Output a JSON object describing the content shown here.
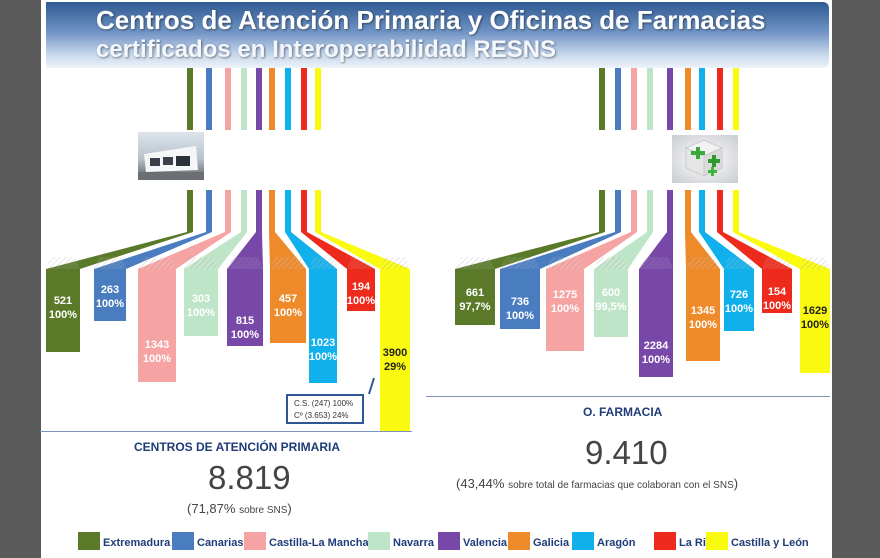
{
  "title": {
    "line1": "Centros de Atención Primaria y Oficinas de Farmacias",
    "line2": "certificados en Interoperabilidad RESNS"
  },
  "colors": {
    "extremadura": "#5a7a2a",
    "canarias": "#4a7cc0",
    "castilla_la_mancha": "#f6a3a3",
    "navarra": "#bfe5c8",
    "valencia": "#7848a8",
    "galicia": "#ee8a2a",
    "aragon": "#10b0ec",
    "la_rioja": "#ee2a1c",
    "castilla_y_leon": "#fafa10"
  },
  "primary_care": {
    "image": "building-photo",
    "items": [
      {
        "region": "Extremadura",
        "count": "521",
        "pct": "100%"
      },
      {
        "region": "Canarias",
        "count": "263",
        "pct": "100%"
      },
      {
        "region": "Castilla-La Mancha",
        "count": "1343",
        "pct": "100%"
      },
      {
        "region": "Navarra",
        "count": "303",
        "pct": "100%"
      },
      {
        "region": "Valencia",
        "count": "815",
        "pct": "100%"
      },
      {
        "region": "Galicia",
        "count": "457",
        "pct": "100%"
      },
      {
        "region": "Aragón",
        "count": "1023",
        "pct": "100%"
      },
      {
        "region": "La Rioja",
        "count": "194",
        "pct": "100%"
      },
      {
        "region": "Castilla y León",
        "count": "3900",
        "pct": "29%"
      }
    ],
    "note_line1": "C.S. (247) 100%",
    "note_line2": "Cº (3.653) 24%",
    "section_title": "CENTROS DE ATENCIÓN PRIMARIA",
    "total": "8.819",
    "sub_paren_open": "(",
    "sub_pct": "71,87%",
    "sub_text": "sobre SNS",
    "sub_paren_close": ")"
  },
  "pharmacy": {
    "image": "pharmacy-cross-icon",
    "items": [
      {
        "region": "Extremadura",
        "count": "661",
        "pct": "97,7%"
      },
      {
        "region": "Canarias",
        "count": "736",
        "pct": "100%"
      },
      {
        "region": "Castilla-La Mancha",
        "count": "1275",
        "pct": "100%"
      },
      {
        "region": "Navarra",
        "count": "600",
        "pct": "99,5%"
      },
      {
        "region": "Valencia",
        "count": "2284",
        "pct": "100%"
      },
      {
        "region": "Galicia",
        "count": "1345",
        "pct": "100%"
      },
      {
        "region": "Aragón",
        "count": "726",
        "pct": "100%"
      },
      {
        "region": "La Rioja",
        "count": "154",
        "pct": "100%"
      },
      {
        "region": "Castilla y León",
        "count": "1629",
        "pct": "100%"
      }
    ],
    "section_title": "O. FARMACIA",
    "total": "9.410",
    "sub_paren_open": "(",
    "sub_pct": "43,44%",
    "sub_text": "sobre total de farmacias que colaboran con el SNS",
    "sub_paren_close": ")"
  },
  "legend": [
    {
      "label": "Extremadura",
      "color_key": "extremadura"
    },
    {
      "label": "Canarias",
      "color_key": "canarias"
    },
    {
      "label": "Castilla-La Mancha",
      "color_key": "castilla_la_mancha"
    },
    {
      "label": "Navarra",
      "color_key": "navarra"
    },
    {
      "label": "Valencia",
      "color_key": "valencia"
    },
    {
      "label": "Galicia",
      "color_key": "galicia"
    },
    {
      "label": "Aragón",
      "color_key": "aragon"
    },
    {
      "label": "La Rioja",
      "color_key": "la_rioja"
    },
    {
      "label": "Castilla y León",
      "color_key": "castilla_y_leon"
    }
  ]
}
